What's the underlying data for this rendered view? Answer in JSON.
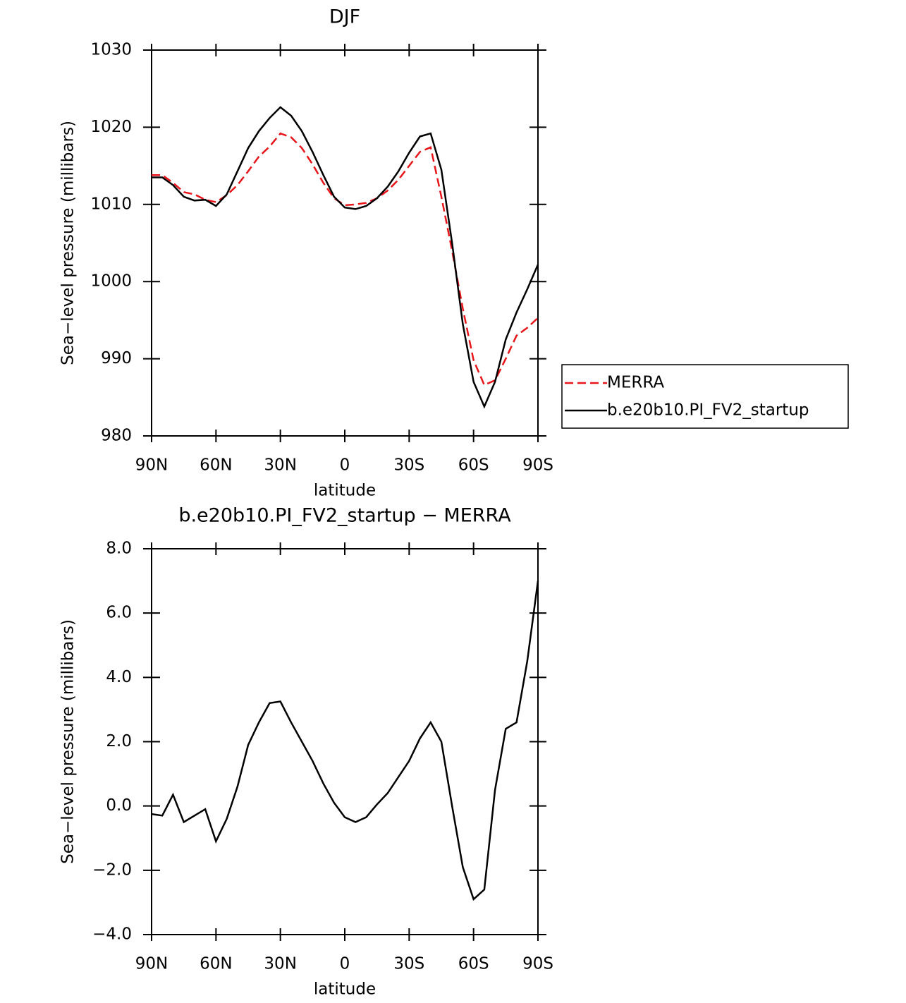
{
  "chart_data": [
    {
      "type": "line",
      "title": "DJF",
      "xlabel": "latitude",
      "ylabel": "Sea−level pressure (millibars)",
      "x": [
        90,
        85,
        80,
        75,
        70,
        65,
        60,
        55,
        50,
        45,
        40,
        35,
        30,
        25,
        20,
        15,
        10,
        5,
        0,
        -5,
        -10,
        -15,
        -20,
        -25,
        -30,
        -35,
        -40,
        -45,
        -50,
        -55,
        -60,
        -65,
        -70,
        -75,
        -80,
        -85,
        -90
      ],
      "xlim": [
        90,
        -90
      ],
      "xticks": [
        {
          "value": 90,
          "label": "90N"
        },
        {
          "value": 60,
          "label": "60N"
        },
        {
          "value": 30,
          "label": "30N"
        },
        0,
        {
          "value": -30,
          "label": "30S"
        },
        {
          "value": -60,
          "label": "60S"
        },
        {
          "value": -90,
          "label": "90S"
        }
      ],
      "ylim": [
        980,
        1030
      ],
      "yticks": [
        980,
        990,
        1000,
        1010,
        1020,
        1030
      ],
      "legend": "right",
      "series": [
        {
          "name": "MERRA",
          "color": "#e8161b",
          "dash": true,
          "values": [
            1013.8,
            1013.8,
            1012.8,
            1011.6,
            1011.3,
            1010.6,
            1010.3,
            1011.2,
            1012.5,
            1014.3,
            1016.2,
            1017.5,
            1019.2,
            1018.7,
            1017.3,
            1015.2,
            1012.8,
            1010.8,
            1009.9,
            1010.0,
            1010.2,
            1010.8,
            1011.8,
            1013.2,
            1015.0,
            1016.8,
            1017.4,
            1011.0,
            1004.0,
            996.5,
            989.8,
            986.6,
            987.2,
            990.0,
            993.0,
            994.0,
            995.3
          ]
        },
        {
          "name": "b.e20b10.PI_FV2_startup",
          "color": "#000000",
          "dash": false,
          "values": [
            1013.5,
            1013.5,
            1012.5,
            1011.0,
            1010.5,
            1010.6,
            1009.8,
            1011.3,
            1014.3,
            1017.3,
            1019.5,
            1021.2,
            1022.6,
            1021.5,
            1019.5,
            1016.8,
            1013.8,
            1011.0,
            1009.6,
            1009.4,
            1009.8,
            1010.8,
            1012.3,
            1014.3,
            1016.7,
            1018.8,
            1019.2,
            1014.5,
            1005.0,
            994.5,
            987.0,
            983.8,
            987.0,
            992.5,
            996.0,
            999.0,
            1002.2
          ]
        }
      ]
    },
    {
      "type": "line",
      "title": "b.e20b10.PI_FV2_startup − MERRA",
      "xlabel": "latitude",
      "ylabel": "Sea−level pressure (millibars)",
      "x": [
        90,
        85,
        80,
        75,
        70,
        65,
        60,
        55,
        50,
        45,
        40,
        35,
        30,
        25,
        20,
        15,
        10,
        5,
        0,
        -5,
        -10,
        -15,
        -20,
        -25,
        -30,
        -35,
        -40,
        -45,
        -50,
        -55,
        -60,
        -65,
        -70,
        -75,
        -80,
        -85,
        -90
      ],
      "xlim": [
        90,
        -90
      ],
      "xticks": [
        {
          "value": 90,
          "label": "90N"
        },
        {
          "value": 60,
          "label": "60N"
        },
        {
          "value": 30,
          "label": "30N"
        },
        0,
        {
          "value": -30,
          "label": "30S"
        },
        {
          "value": -60,
          "label": "60S"
        },
        {
          "value": -90,
          "label": "90S"
        }
      ],
      "ylim": [
        -4,
        8
      ],
      "yticks": [
        {
          "value": -4,
          "label": "−4.0"
        },
        {
          "value": -2,
          "label": "−2.0"
        },
        {
          "value": 0,
          "label": "0.0"
        },
        {
          "value": 2,
          "label": "2.0"
        },
        {
          "value": 4,
          "label": "4.0"
        },
        {
          "value": 6,
          "label": "6.0"
        },
        {
          "value": 8,
          "label": "8.0"
        }
      ],
      "color": "#000000",
      "values": [
        -0.25,
        -0.3,
        0.35,
        -0.5,
        -0.3,
        -0.1,
        -1.1,
        -0.4,
        0.6,
        1.9,
        2.6,
        3.2,
        3.25,
        2.6,
        2.0,
        1.4,
        0.7,
        0.1,
        -0.35,
        -0.5,
        -0.35,
        0.05,
        0.4,
        0.9,
        1.4,
        2.1,
        2.6,
        2.0,
        0.0,
        -1.9,
        -2.9,
        -2.6,
        0.5,
        2.4,
        2.6,
        4.5,
        7.0
      ]
    }
  ]
}
